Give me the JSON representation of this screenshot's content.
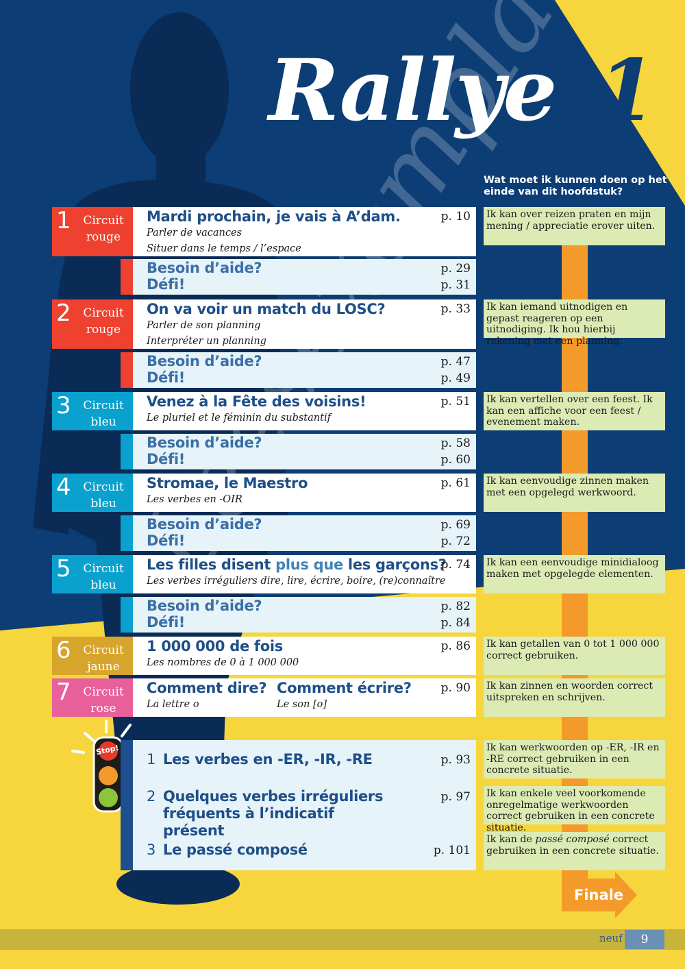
{
  "header": {
    "title": "Rallye",
    "number": "1",
    "question": "Wat moet ik kunnen doen op het einde van dit hoofdstuk?"
  },
  "colors": {
    "blue_bg": "#0c3d74",
    "yellow_bg": "#f6d63c",
    "rouge": "#ee4130",
    "bleu": "#0aa1cf",
    "jaune": "#d7a42c",
    "rose": "#e8609a",
    "goal_bg": "#dcebb4",
    "arrow": "#f39a2a"
  },
  "lessons": [
    {
      "num": "1",
      "circuit": "Circuit",
      "circuit_color": "rouge",
      "title": "Mardi prochain, je vais à A’dam.",
      "page": "p. 10",
      "subs": [
        "Parler de vacances",
        "Situer dans le temps / l’espace"
      ],
      "aide": "Besoin d’aide?",
      "aide_page": "p. 29",
      "defi": "Défi!",
      "defi_page": "p. 31",
      "goal": "Ik kan over reizen praten en mijn mening / appreciatie erover uiten."
    },
    {
      "num": "2",
      "circuit": "Circuit",
      "circuit_color": "rouge",
      "title": "On va voir un match du LOSC?",
      "page": "p. 33",
      "subs": [
        "Parler de son planning",
        "Interpréter un planning"
      ],
      "aide": "Besoin d’aide?",
      "aide_page": "p. 47",
      "defi": "Défi!",
      "defi_page": "p. 49",
      "goal": "Ik kan iemand uitnodigen en gepast reageren op een uitnodiging. Ik hou hierbij rekening met een planning."
    },
    {
      "num": "3",
      "circuit": "Circuit",
      "circuit_color": "bleu",
      "title": "Venez à la Fête des voisins!",
      "page": "p. 51",
      "subs": [
        "Le pluriel et le féminin du substantif"
      ],
      "aide": "Besoin d’aide?",
      "aide_page": "p. 58",
      "defi": "Défi!",
      "defi_page": "p. 60",
      "goal": "Ik kan vertellen over een feest. Ik kan een affiche voor een feest / evenement maken."
    },
    {
      "num": "4",
      "circuit": "Circuit",
      "circuit_color": "bleu",
      "title": "Stromae, le Maestro",
      "page": "p. 61",
      "subs": [
        "Les verbes en -OIR"
      ],
      "aide": "Besoin d’aide?",
      "aide_page": "p. 69",
      "defi": "Défi!",
      "defi_page": "p. 72",
      "goal": "Ik kan eenvoudige zinnen maken met een opgelegd werkwoord."
    },
    {
      "num": "5",
      "circuit": "Circuit",
      "circuit_color": "bleu",
      "title_a": "Les filles disent ",
      "title_b": "plus que",
      "title_c": " les garçons?",
      "page": "p. 74",
      "subs": [
        "Les verbes irréguliers dire, lire, écrire, boire, (re)connaître"
      ],
      "aide": "Besoin d’aide?",
      "aide_page": "p. 82",
      "defi": "Défi!",
      "defi_page": "p. 84",
      "goal": "Ik kan een eenvoudige minidialoog maken met opgelegde elementen."
    },
    {
      "num": "6",
      "circuit": "Circuit",
      "circuit_color": "jaune",
      "title": "1 000 000 de fois",
      "page": "p. 86",
      "subs": [
        "Les nombres de 0 à 1 000 000"
      ],
      "goal": "Ik kan getallen van 0 tot 1 000 000 correct gebruiken."
    },
    {
      "num": "7",
      "circuit": "Circuit",
      "circuit_color": "rose",
      "title": "Comment dire?",
      "title2": "Comment écrire?",
      "page": "p. 90",
      "subs": [
        "La lettre o"
      ],
      "sub2": "Le son [o]",
      "goal": "Ik kan zinnen en woorden correct uitspreken en schrijven."
    }
  ],
  "circuit_words": {
    "rouge": "rouge",
    "bleu": "bleu",
    "jaune": "jaune",
    "rose": "rose"
  },
  "stop": {
    "sign": "Stop!",
    "items": [
      {
        "num": "1",
        "title": "Les verbes en -ER, -IR, -RE",
        "page": "p. 93",
        "goal": "Ik kan werkwoorden op -ER, -IR en -RE correct gebruiken in een concrete situatie."
      },
      {
        "num": "2",
        "title": "Quelques verbes irréguliers fréquents à l’indicatif présent",
        "page": "p. 97",
        "goal": "Ik kan enkele veel voorkomende onregelmatige werkwoorden correct gebruiken in een concrete situatie."
      },
      {
        "num": "3",
        "title": "Le passé composé",
        "page": "p. 101",
        "goal_a": "Ik kan de ",
        "goal_b": "passé composé",
        "goal_c": " correct gebruiken in een concrete situatie."
      }
    ]
  },
  "finale": "Finale",
  "footer": {
    "word": "neuf",
    "page": "9"
  },
  "watermark": "Leesexemplaar"
}
